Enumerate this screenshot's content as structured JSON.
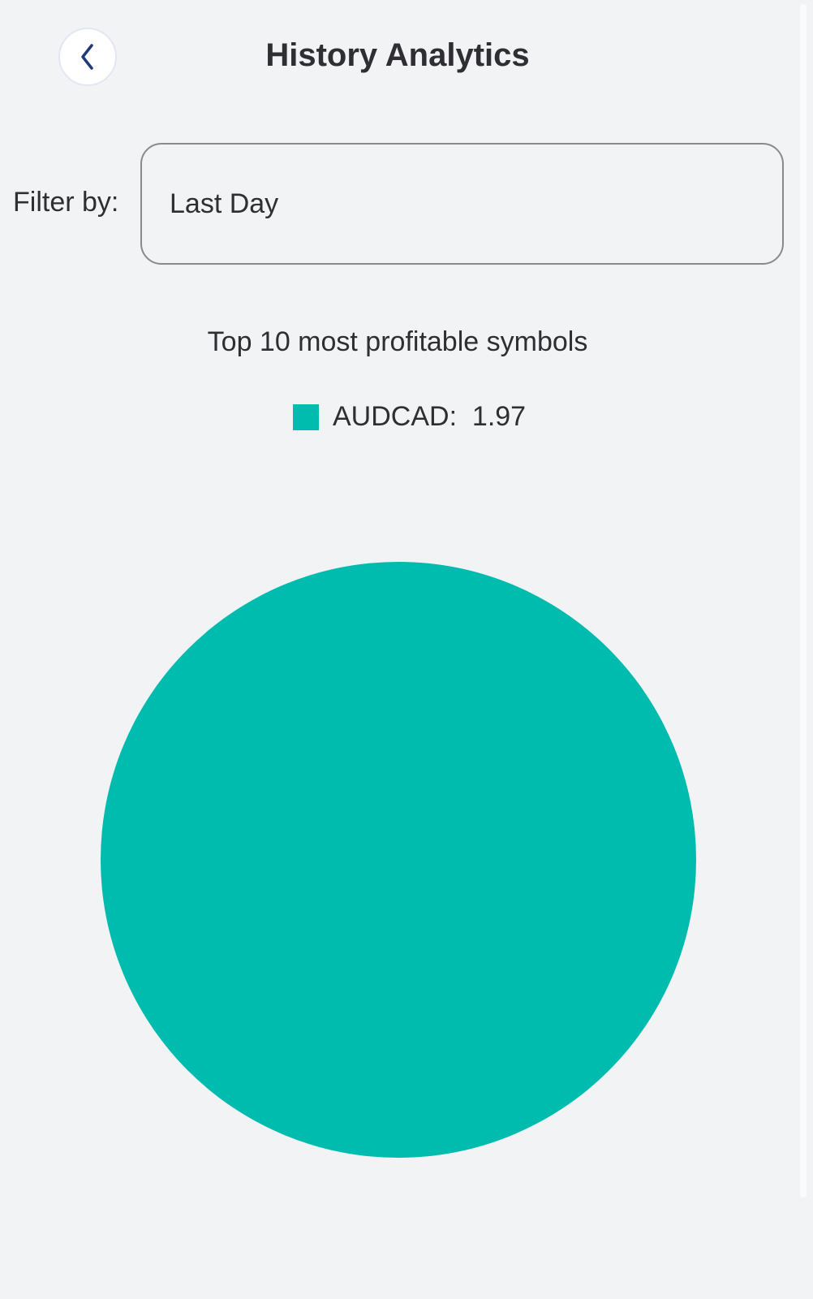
{
  "header": {
    "title": "History Analytics",
    "back_icon": "chevron-left-icon"
  },
  "filter": {
    "label": "Filter by:",
    "value": "Last Day"
  },
  "chart_data": {
    "type": "pie",
    "title": "Top 10 most profitable symbols",
    "legend_position": "top",
    "slices": [
      {
        "label": "AUDCAD",
        "value": 1.97,
        "color": "#00bcae"
      }
    ]
  }
}
